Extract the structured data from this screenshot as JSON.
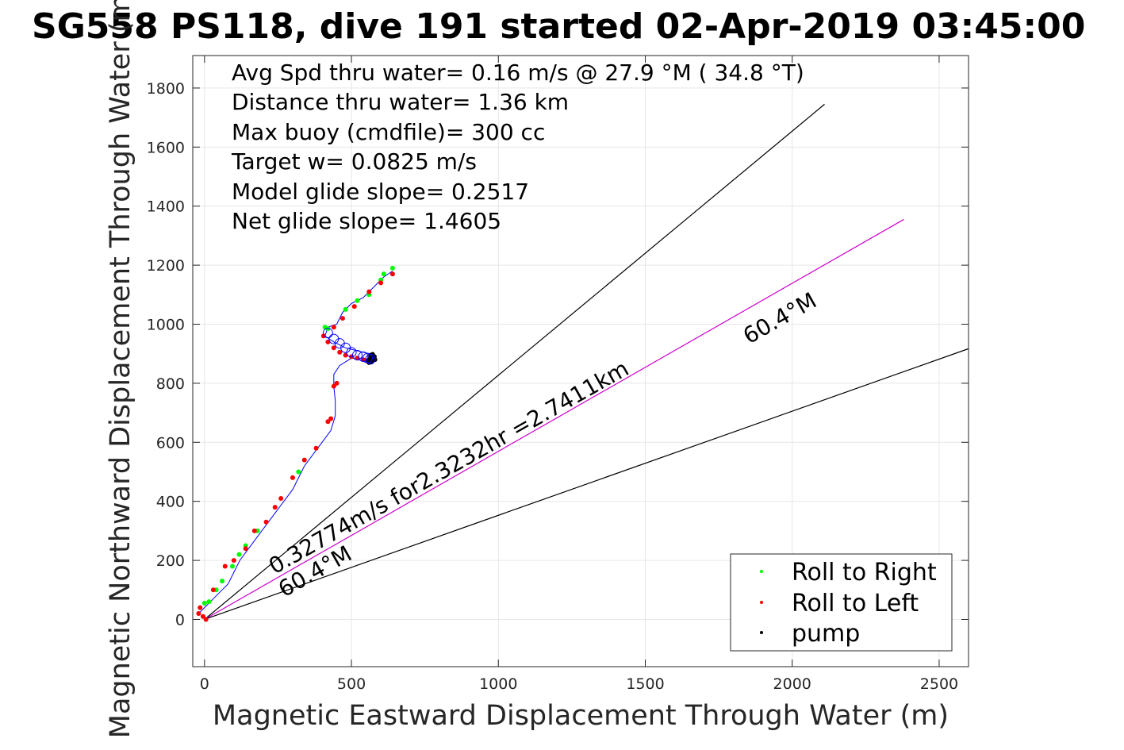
{
  "chart_data": {
    "type": "scatter",
    "title": "SG558 PS118, dive 191 started 02-Apr-2019 03:45:00",
    "xlabel": "Magnetic Eastward Displacement Through Water (m)",
    "ylabel": "Magnetic Northward Displacement Through Water (m)",
    "xlim": [
      -40,
      2600
    ],
    "ylim": [
      -160,
      1910
    ],
    "xticks": [
      0,
      500,
      1000,
      1500,
      2000,
      2500
    ],
    "yticks": [
      0,
      200,
      400,
      600,
      800,
      1000,
      1200,
      1400,
      1600,
      1800
    ],
    "grid": true,
    "legend_position": "bottom-right",
    "annotations": [
      "Avg Spd thru water=  0.16 m/s @  27.9 °M ( 34.8 °T)",
      "Distance thru water=  1.36 km",
      "Max buoy (cmdfile)= 300 cc",
      "Target w= 0.0825 m/s",
      "Model glide slope= 0.2517",
      "Net glide slope= 1.4605"
    ],
    "current_label": "0.32774m/s for2.3232hr =2.7411km",
    "heading_label_upper": "60.4°M",
    "heading_label_lower": "60.4°M",
    "lines": [
      {
        "kind": "boundary-upper",
        "x": [
          0,
          2110
        ],
        "y": [
          0,
          1745
        ]
      },
      {
        "kind": "current",
        "x": [
          0,
          2380
        ],
        "y": [
          0,
          1355
        ]
      },
      {
        "kind": "boundary-lower",
        "x": [
          0,
          2600
        ],
        "y": [
          0,
          917
        ]
      }
    ],
    "track_path": [
      [
        -20,
        20
      ],
      [
        0,
        40
      ],
      [
        20,
        60
      ],
      [
        40,
        80
      ],
      [
        60,
        100
      ],
      [
        80,
        120
      ],
      [
        100,
        160
      ],
      [
        120,
        200
      ],
      [
        150,
        240
      ],
      [
        180,
        280
      ],
      [
        210,
        320
      ],
      [
        240,
        360
      ],
      [
        270,
        400
      ],
      [
        300,
        440
      ],
      [
        320,
        480
      ],
      [
        340,
        520
      ],
      [
        370,
        560
      ],
      [
        400,
        600
      ],
      [
        430,
        640
      ],
      [
        445,
        690
      ],
      [
        445,
        740
      ],
      [
        440,
        790
      ],
      [
        440,
        830
      ],
      [
        460,
        860
      ],
      [
        500,
        885
      ],
      [
        540,
        885
      ],
      [
        560,
        880
      ],
      [
        560,
        900
      ],
      [
        520,
        910
      ],
      [
        480,
        920
      ],
      [
        440,
        940
      ],
      [
        410,
        960
      ],
      [
        420,
        990
      ],
      [
        450,
        1000
      ],
      [
        470,
        1040
      ],
      [
        500,
        1070
      ],
      [
        540,
        1090
      ],
      [
        580,
        1130
      ],
      [
        610,
        1160
      ],
      [
        640,
        1180
      ]
    ],
    "series": [
      {
        "name": "Roll to Right",
        "color": "#00ff00",
        "x": [
          0,
          15,
          40,
          60,
          95,
          118,
          140,
          180,
          320,
          410,
          420,
          480,
          520,
          560,
          600,
          610,
          640
        ],
        "y": [
          55,
          60,
          100,
          130,
          180,
          220,
          250,
          300,
          500,
          990,
          985,
          1050,
          1080,
          1100,
          1150,
          1170,
          1190
        ]
      },
      {
        "name": "Roll to Left",
        "color": "#ff0000",
        "x": [
          -20,
          -15,
          -5,
          5,
          30,
          70,
          100,
          140,
          170,
          210,
          240,
          260,
          300,
          340,
          380,
          420,
          430,
          440,
          450,
          405,
          420,
          440,
          460,
          480,
          500,
          520,
          540,
          440,
          470,
          510,
          560,
          600,
          640
        ],
        "y": [
          20,
          40,
          10,
          0,
          100,
          180,
          200,
          240,
          300,
          330,
          380,
          410,
          480,
          540,
          580,
          670,
          680,
          790,
          800,
          960,
          940,
          920,
          905,
          895,
          890,
          885,
          880,
          990,
          1020,
          1060,
          1110,
          1140,
          1170
        ]
      },
      {
        "name": "pump",
        "color": "#000000",
        "x": [
          560,
          565,
          570,
          575,
          580,
          560,
          555,
          565,
          572,
          578,
          568
        ],
        "y": [
          880,
          885,
          890,
          885,
          880,
          870,
          875,
          895,
          898,
          890,
          872
        ]
      },
      {
        "name": "",
        "color": "#0000ff",
        "marker": "circle",
        "x": [
          420,
          440,
          460,
          480,
          500,
          520,
          540,
          555,
          565
        ],
        "y": [
          970,
          950,
          935,
          920,
          905,
          895,
          890,
          885,
          882
        ]
      }
    ]
  }
}
